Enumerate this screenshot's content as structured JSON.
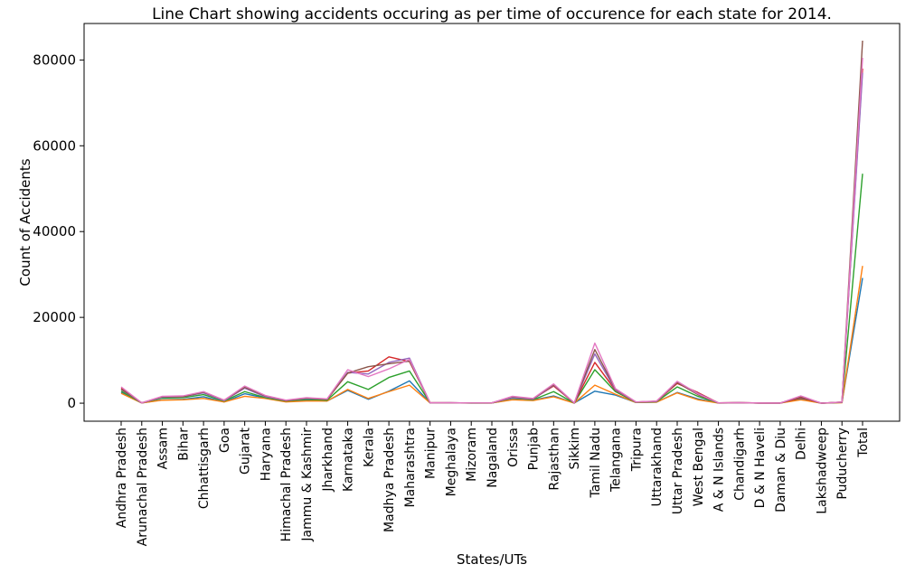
{
  "chart_data": {
    "type": "line",
    "title": "Line Chart showing accidents occuring as per time of occurence for each state for 2014.",
    "xlabel": "States/UTs",
    "ylabel": "Count of Accidents",
    "ylim": [
      -4200,
      88500
    ],
    "yticks": [
      0,
      20000,
      40000,
      60000,
      80000
    ],
    "yticklabels": [
      "0",
      "20000",
      "40000",
      "60000",
      "80000"
    ],
    "grid": false,
    "legend": "none",
    "categories": [
      "Andhra Pradesh",
      "Arunachal Pradesh",
      "Assam",
      "Bihar",
      "Chhattisgarh",
      "Goa",
      "Gujarat",
      "Haryana",
      "Himachal Pradesh",
      "Jammu & Kashmir",
      "Jharkhand",
      "Karnataka",
      "Kerala",
      "Madhya Pradesh",
      "Maharashtra",
      "Manipur",
      "Meghalaya",
      "Mizoram",
      "Nagaland",
      "Orissa",
      "Punjab",
      "Rajasthan",
      "Sikkim",
      "Tamil Nadu",
      "Telangana",
      "Tripura",
      "Uttarakhand",
      "Uttar Pradesh",
      "West Bengal",
      "A & N Islands",
      "Chandigarh",
      "D & N Haveli",
      "Daman & Diu",
      "Delhi",
      "Lakshadweep",
      "Puducherry",
      "Total"
    ],
    "series": [
      {
        "color": "#1f77b4",
        "values": [
          2500,
          50,
          800,
          900,
          1500,
          300,
          2200,
          1200,
          400,
          700,
          500,
          3000,
          900,
          2800,
          5200,
          60,
          80,
          30,
          40,
          900,
          700,
          1700,
          30,
          2800,
          1900,
          150,
          250,
          2500,
          1000,
          40,
          80,
          20,
          20,
          1000,
          5,
          150,
          29200
        ]
      },
      {
        "color": "#ff7f0e",
        "values": [
          2300,
          50,
          700,
          800,
          1100,
          300,
          1600,
          1100,
          300,
          500,
          500,
          3200,
          1100,
          2700,
          4200,
          60,
          60,
          30,
          40,
          800,
          600,
          1500,
          30,
          4200,
          2100,
          150,
          250,
          2400,
          800,
          30,
          70,
          20,
          20,
          800,
          5,
          100,
          32000
        ]
      },
      {
        "color": "#2ca02c",
        "values": [
          2800,
          70,
          1200,
          1300,
          2000,
          500,
          2700,
          1300,
          500,
          900,
          700,
          5000,
          3200,
          6000,
          7500,
          80,
          90,
          40,
          60,
          1200,
          800,
          2700,
          40,
          7800,
          2700,
          200,
          350,
          3800,
          1600,
          60,
          100,
          30,
          30,
          1300,
          5,
          200,
          53500
        ]
      },
      {
        "color": "#d62728",
        "values": [
          3500,
          80,
          1500,
          1600,
          2500,
          700,
          3600,
          1600,
          600,
          1200,
          900,
          7000,
          7500,
          10800,
          9700,
          100,
          100,
          50,
          80,
          1400,
          1000,
          4000,
          50,
          9500,
          3000,
          250,
          450,
          4600,
          2500,
          70,
          120,
          40,
          30,
          1300,
          5,
          250,
          78000
        ]
      },
      {
        "color": "#9467bd",
        "values": [
          3200,
          70,
          1400,
          1500,
          2400,
          600,
          3500,
          1500,
          600,
          1100,
          900,
          7200,
          6800,
          9500,
          10500,
          90,
          100,
          50,
          70,
          1300,
          900,
          4200,
          50,
          11500,
          3100,
          250,
          400,
          4900,
          2300,
          60,
          110,
          30,
          30,
          1500,
          5,
          220,
          77000
        ]
      },
      {
        "color": "#8c564b",
        "values": [
          3300,
          70,
          1500,
          1500,
          2600,
          700,
          3700,
          1700,
          600,
          1200,
          900,
          7000,
          8500,
          9200,
          9800,
          100,
          100,
          50,
          80,
          1500,
          1000,
          4300,
          50,
          12500,
          3300,
          250,
          450,
          4800,
          2000,
          70,
          120,
          40,
          30,
          1500,
          5,
          250,
          84500
        ]
      },
      {
        "color": "#e377c2",
        "values": [
          3800,
          80,
          1600,
          1700,
          2700,
          700,
          4000,
          1800,
          700,
          1300,
          1000,
          7800,
          6200,
          8000,
          10200,
          100,
          110,
          60,
          80,
          1600,
          1100,
          4500,
          60,
          14000,
          3400,
          280,
          500,
          5100,
          2200,
          70,
          130,
          40,
          30,
          1700,
          5,
          260,
          80500
        ]
      }
    ]
  }
}
